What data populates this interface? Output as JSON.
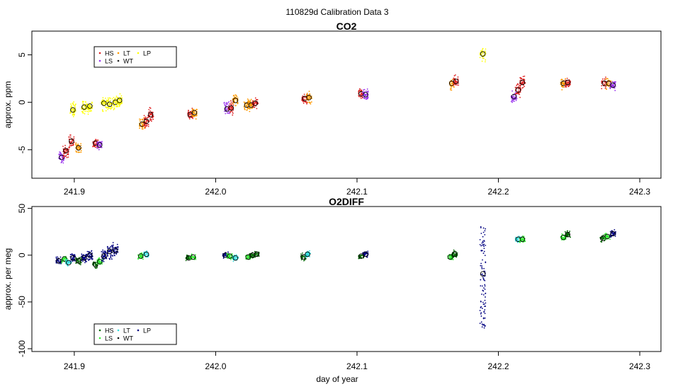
{
  "figure": {
    "title": "110829d   Calibration Data 3",
    "xlabel": "day of year"
  },
  "chart_data": [
    {
      "type": "scatter",
      "title": "CO2",
      "ylabel": "approx. ppm",
      "xlim": [
        241.87,
        242.315
      ],
      "ylim": [
        -8,
        7.5
      ],
      "xticks": [
        241.9,
        242.0,
        242.1,
        242.2,
        242.3
      ],
      "xtick_labels": [
        "241.9",
        "242.0",
        "242.1",
        "242.2",
        "242.3"
      ],
      "yticks": [
        -5,
        0,
        5
      ],
      "ytick_labels": [
        "-5",
        "0",
        "5"
      ],
      "legend": {
        "placement": "top-left",
        "entries": [
          {
            "label": "HS",
            "color": "#dd2222"
          },
          {
            "label": "LS",
            "color": "#9933ee"
          },
          {
            "label": "LT",
            "color": "#ff9900"
          },
          {
            "label": "WT",
            "color": "#222222"
          },
          {
            "label": "LP",
            "color": "#ffff00"
          }
        ]
      },
      "clusters": [
        {
          "x": 241.891,
          "y": -5.8,
          "spread": 1.4,
          "color": "#9933ee",
          "mean": -5.8
        },
        {
          "x": 241.894,
          "y": -5.2,
          "spread": 1.2,
          "color": "#dd2222",
          "mean": -5.1
        },
        {
          "x": 241.898,
          "y": -4.2,
          "spread": 1.4,
          "color": "#dd2222",
          "mean": -4.1
        },
        {
          "x": 241.899,
          "y": -0.8,
          "spread": 1.3,
          "color": "#ffff00",
          "mean": -0.8
        },
        {
          "x": 241.903,
          "y": -4.8,
          "spread": 1.1,
          "color": "#ff9900",
          "mean": -4.8
        },
        {
          "x": 241.907,
          "y": -0.5,
          "spread": 1.2,
          "color": "#ffff00",
          "mean": -0.5
        },
        {
          "x": 241.911,
          "y": -0.4,
          "spread": 1.2,
          "color": "#ffff00",
          "mean": -0.4
        },
        {
          "x": 241.915,
          "y": -4.3,
          "spread": 0.9,
          "color": "#dd2222",
          "mean": -4.3
        },
        {
          "x": 241.918,
          "y": -4.5,
          "spread": 0.9,
          "color": "#9933ee",
          "mean": -4.5
        },
        {
          "x": 241.921,
          "y": -0.1,
          "spread": 1.3,
          "color": "#ffff00",
          "mean": -0.1
        },
        {
          "x": 241.925,
          "y": -0.2,
          "spread": 1.3,
          "color": "#ffff00",
          "mean": -0.2
        },
        {
          "x": 241.929,
          "y": 0.0,
          "spread": 1.3,
          "color": "#ffff00",
          "mean": 0.0
        },
        {
          "x": 241.932,
          "y": 0.2,
          "spread": 1.3,
          "color": "#ffff00",
          "mean": 0.2
        },
        {
          "x": 241.948,
          "y": -2.3,
          "spread": 1.2,
          "color": "#ff9900",
          "mean": -2.3
        },
        {
          "x": 241.951,
          "y": -2.0,
          "spread": 1.1,
          "color": "#dd2222",
          "mean": -2.0
        },
        {
          "x": 241.954,
          "y": -1.3,
          "spread": 1.1,
          "color": "#dd2222",
          "mean": -1.3
        },
        {
          "x": 241.982,
          "y": -1.3,
          "spread": 1.0,
          "color": "#dd2222",
          "mean": -1.3
        },
        {
          "x": 241.985,
          "y": -1.1,
          "spread": 1.0,
          "color": "#ff9900",
          "mean": -1.1
        },
        {
          "x": 242.008,
          "y": -0.7,
          "spread": 1.2,
          "color": "#9933ee",
          "mean": -0.7
        },
        {
          "x": 242.011,
          "y": -0.6,
          "spread": 1.1,
          "color": "#dd2222",
          "mean": -0.6
        },
        {
          "x": 242.014,
          "y": 0.2,
          "spread": 1.0,
          "color": "#ff9900",
          "mean": 0.2
        },
        {
          "x": 242.022,
          "y": -0.3,
          "spread": 1.0,
          "color": "#ff9900",
          "mean": -0.3
        },
        {
          "x": 242.025,
          "y": -0.3,
          "spread": 1.0,
          "color": "#ff9900",
          "mean": -0.3
        },
        {
          "x": 242.028,
          "y": -0.1,
          "spread": 1.0,
          "color": "#dd2222",
          "mean": -0.1
        },
        {
          "x": 242.063,
          "y": 0.4,
          "spread": 1.1,
          "color": "#dd2222",
          "mean": 0.4
        },
        {
          "x": 242.066,
          "y": 0.5,
          "spread": 1.1,
          "color": "#ff9900",
          "mean": 0.5
        },
        {
          "x": 242.103,
          "y": 0.9,
          "spread": 1.1,
          "color": "#dd2222",
          "mean": 0.9
        },
        {
          "x": 242.106,
          "y": 0.8,
          "spread": 1.0,
          "color": "#9933ee",
          "mean": 0.8
        },
        {
          "x": 242.167,
          "y": 2.0,
          "spread": 1.1,
          "color": "#ff9900",
          "mean": 2.0
        },
        {
          "x": 242.17,
          "y": 2.2,
          "spread": 1.0,
          "color": "#dd2222",
          "mean": 2.2
        },
        {
          "x": 242.189,
          "y": 5.1,
          "spread": 1.2,
          "color": "#ffff00",
          "mean": 5.1
        },
        {
          "x": 242.211,
          "y": 0.6,
          "spread": 1.2,
          "color": "#9933ee",
          "mean": 0.6
        },
        {
          "x": 242.214,
          "y": 1.3,
          "spread": 1.1,
          "color": "#dd2222",
          "mean": 1.3
        },
        {
          "x": 242.217,
          "y": 2.1,
          "spread": 1.2,
          "color": "#dd2222",
          "mean": 2.1
        },
        {
          "x": 242.246,
          "y": 2.0,
          "spread": 1.0,
          "color": "#ff9900",
          "mean": 2.0
        },
        {
          "x": 242.249,
          "y": 2.1,
          "spread": 1.0,
          "color": "#dd2222",
          "mean": 2.1
        },
        {
          "x": 242.275,
          "y": 2.0,
          "spread": 1.0,
          "color": "#dd2222",
          "mean": 2.0
        },
        {
          "x": 242.278,
          "y": 2.0,
          "spread": 1.0,
          "color": "#ff9900",
          "mean": 2.0
        },
        {
          "x": 242.281,
          "y": 1.8,
          "spread": 1.0,
          "color": "#9933ee",
          "mean": 1.8
        }
      ]
    },
    {
      "type": "scatter",
      "title": "O2DIFF",
      "ylabel": "approx. per meg",
      "xlim": [
        241.87,
        242.315
      ],
      "ylim": [
        -103,
        52
      ],
      "xticks": [
        241.9,
        242.0,
        242.1,
        242.2,
        242.3
      ],
      "xtick_labels": [
        "241.9",
        "242.0",
        "242.1",
        "242.2",
        "242.3"
      ],
      "yticks": [
        -100,
        -50,
        0,
        50
      ],
      "ytick_labels": [
        "-100",
        "-50",
        "0",
        "50"
      ],
      "legend": {
        "placement": "bottom-left",
        "entries": [
          {
            "label": "HS",
            "color": "#006400"
          },
          {
            "label": "LS",
            "color": "#33ee33"
          },
          {
            "label": "LT",
            "color": "#33dddd"
          },
          {
            "label": "WT",
            "color": "#111111"
          },
          {
            "label": "LP",
            "color": "#000080"
          }
        ]
      },
      "clusters": [
        {
          "x": 241.889,
          "y": -6,
          "spread": 8,
          "color": "#000080",
          "mean": -6
        },
        {
          "x": 241.893,
          "y": -5,
          "spread": 7,
          "color": "#33ee33",
          "mean": -4
        },
        {
          "x": 241.896,
          "y": -8,
          "spread": 6,
          "color": "#33dddd",
          "mean": -8
        },
        {
          "x": 241.899,
          "y": -3,
          "spread": 9,
          "color": "#000080",
          "mean": -3
        },
        {
          "x": 241.903,
          "y": -6,
          "spread": 7,
          "color": "#006400",
          "mean": -6
        },
        {
          "x": 241.907,
          "y": -3,
          "spread": 9,
          "color": "#000080",
          "mean": -3
        },
        {
          "x": 241.911,
          "y": 0,
          "spread": 12,
          "color": "#000080",
          "mean": 0
        },
        {
          "x": 241.915,
          "y": -10,
          "spread": 7,
          "color": "#006400",
          "mean": -10
        },
        {
          "x": 241.918,
          "y": -7,
          "spread": 6,
          "color": "#33ee33",
          "mean": -7
        },
        {
          "x": 241.921,
          "y": -1,
          "spread": 12,
          "color": "#000080",
          "mean": -1
        },
        {
          "x": 241.925,
          "y": 4,
          "spread": 14,
          "color": "#000080",
          "mean": 4
        },
        {
          "x": 241.929,
          "y": 5,
          "spread": 12,
          "color": "#000080",
          "mean": 5
        },
        {
          "x": 241.947,
          "y": -1,
          "spread": 6,
          "color": "#33ee33",
          "mean": -1
        },
        {
          "x": 241.951,
          "y": 1,
          "spread": 6,
          "color": "#33dddd",
          "mean": 1
        },
        {
          "x": 241.981,
          "y": -3,
          "spread": 5,
          "color": "#006400",
          "mean": -3
        },
        {
          "x": 241.984,
          "y": -2,
          "spread": 5,
          "color": "#33ee33",
          "mean": -2
        },
        {
          "x": 242.007,
          "y": 0,
          "spread": 6,
          "color": "#000080",
          "mean": 0
        },
        {
          "x": 242.01,
          "y": -1,
          "spread": 6,
          "color": "#33ee33",
          "mean": -1
        },
        {
          "x": 242.014,
          "y": -3,
          "spread": 5,
          "color": "#33dddd",
          "mean": -3
        },
        {
          "x": 242.023,
          "y": -2,
          "spread": 5,
          "color": "#33ee33",
          "mean": -2
        },
        {
          "x": 242.026,
          "y": 0,
          "spread": 5,
          "color": "#006400",
          "mean": 0
        },
        {
          "x": 242.029,
          "y": 1,
          "spread": 5,
          "color": "#006400",
          "mean": 1
        },
        {
          "x": 242.062,
          "y": -2,
          "spread": 6,
          "color": "#006400",
          "mean": -2
        },
        {
          "x": 242.065,
          "y": 1,
          "spread": 6,
          "color": "#33dddd",
          "mean": 1
        },
        {
          "x": 242.103,
          "y": -1,
          "spread": 5,
          "color": "#006400",
          "mean": -1
        },
        {
          "x": 242.106,
          "y": 1,
          "spread": 5,
          "color": "#000080",
          "mean": 1
        },
        {
          "x": 242.166,
          "y": -2,
          "spread": 6,
          "color": "#33ee33",
          "mean": -2
        },
        {
          "x": 242.169,
          "y": 1,
          "spread": 6,
          "color": "#006400",
          "mean": 1
        },
        {
          "x": 242.189,
          "y": -45,
          "spread": 110,
          "color": "#000080",
          "mean": -20
        },
        {
          "x": 242.214,
          "y": 17,
          "spread": 6,
          "color": "#33dddd",
          "mean": 17
        },
        {
          "x": 242.217,
          "y": 17,
          "spread": 6,
          "color": "#33ee33",
          "mean": 17
        },
        {
          "x": 242.246,
          "y": 19,
          "spread": 6,
          "color": "#33ee33",
          "mean": 19
        },
        {
          "x": 242.249,
          "y": 22,
          "spread": 6,
          "color": "#006400",
          "mean": 22
        },
        {
          "x": 242.274,
          "y": 18,
          "spread": 6,
          "color": "#006400",
          "mean": 18
        },
        {
          "x": 242.277,
          "y": 20,
          "spread": 6,
          "color": "#33ee33",
          "mean": 20
        },
        {
          "x": 242.281,
          "y": 23,
          "spread": 6,
          "color": "#000080",
          "mean": 23
        }
      ]
    }
  ]
}
